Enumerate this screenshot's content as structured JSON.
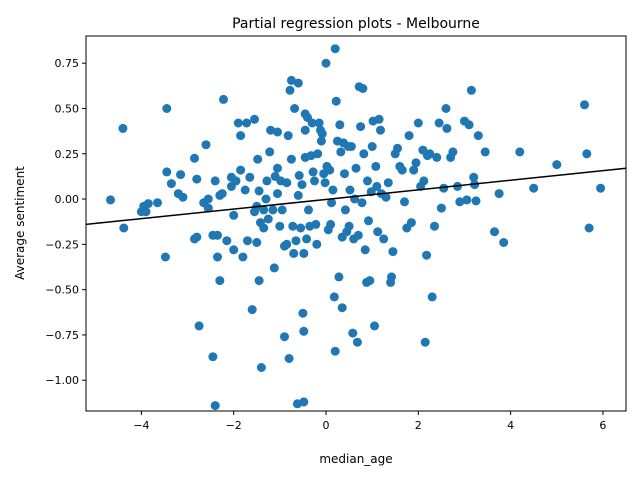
{
  "chart_data": {
    "type": "scatter",
    "title": "Partial regression plots - Melbourne",
    "xlabel": "median_age",
    "ylabel": "Average sentiment",
    "xlim": [
      -5.2,
      6.5
    ],
    "ylim": [
      -1.17,
      0.9
    ],
    "xticks": [
      -4,
      -2,
      0,
      2,
      4,
      6
    ],
    "xtick_labels": [
      "−4",
      "−2",
      "0",
      "2",
      "4",
      "6"
    ],
    "yticks": [
      -1.0,
      -0.75,
      -0.5,
      -0.25,
      0.0,
      0.25,
      0.5,
      0.75
    ],
    "ytick_labels": [
      "−1.00",
      "−0.75",
      "−0.50",
      "−0.25",
      "0.00",
      "0.25",
      "0.50",
      "0.75"
    ],
    "grid": false,
    "point_color": "#1f77b4",
    "line_color": "#000000",
    "fit_line": {
      "x": [
        -5.2,
        6.5
      ],
      "y": [
        -0.14,
        0.17
      ]
    },
    "points": [
      [
        -4.67,
        -0.005
      ],
      [
        -4.4,
        0.39
      ],
      [
        -4.38,
        -0.16
      ],
      [
        -4.0,
        -0.07
      ],
      [
        -3.9,
        -0.07
      ],
      [
        -3.95,
        -0.04
      ],
      [
        -3.85,
        -0.025
      ],
      [
        -3.65,
        -0.02
      ],
      [
        -3.45,
        0.5
      ],
      [
        -3.45,
        0.15
      ],
      [
        -3.48,
        -0.32
      ],
      [
        -3.35,
        0.085
      ],
      [
        -3.2,
        0.03
      ],
      [
        -3.15,
        0.135
      ],
      [
        -3.1,
        0.01
      ],
      [
        -2.85,
        0.225
      ],
      [
        -2.85,
        -0.22
      ],
      [
        -2.8,
        0.11
      ],
      [
        -2.8,
        -0.21
      ],
      [
        -2.75,
        -0.7
      ],
      [
        -2.65,
        -0.02
      ],
      [
        -2.6,
        0.3
      ],
      [
        -2.55,
        -0.05
      ],
      [
        -2.55,
        0.0
      ],
      [
        -2.45,
        -0.2
      ],
      [
        -2.45,
        -0.87
      ],
      [
        -2.4,
        -1.14
      ],
      [
        -2.4,
        0.1
      ],
      [
        -2.35,
        -0.32
      ],
      [
        -2.35,
        -0.2
      ],
      [
        -2.3,
        -0.45
      ],
      [
        -2.3,
        0.02
      ],
      [
        -2.25,
        0.03
      ],
      [
        -2.22,
        0.55
      ],
      [
        -2.15,
        -0.23
      ],
      [
        -2.05,
        0.12
      ],
      [
        -2.05,
        0.07
      ],
      [
        -2.0,
        -0.28
      ],
      [
        -2.0,
        -0.09
      ],
      [
        -1.95,
        0.1
      ],
      [
        -1.9,
        0.42
      ],
      [
        -1.85,
        0.35
      ],
      [
        -1.85,
        0.16
      ],
      [
        -1.8,
        -0.32
      ],
      [
        -1.75,
        0.05
      ],
      [
        -1.72,
        0.42
      ],
      [
        -1.7,
        -0.23
      ],
      [
        -1.65,
        0.12
      ],
      [
        -1.6,
        -0.61
      ],
      [
        -1.55,
        0.44
      ],
      [
        -1.55,
        -0.07
      ],
      [
        -1.5,
        -0.04
      ],
      [
        -1.5,
        -0.24
      ],
      [
        -1.48,
        0.22
      ],
      [
        -1.45,
        0.045
      ],
      [
        -1.45,
        -0.45
      ],
      [
        -1.42,
        -0.13
      ],
      [
        -1.4,
        -0.93
      ],
      [
        -1.35,
        -0.06
      ],
      [
        -1.35,
        -0.16
      ],
      [
        -1.3,
        0.0
      ],
      [
        -1.28,
        0.1
      ],
      [
        -1.25,
        -0.11
      ],
      [
        -1.22,
        0.26
      ],
      [
        -1.2,
        0.38
      ],
      [
        -1.15,
        -0.06
      ],
      [
        -1.12,
        -0.38
      ],
      [
        -1.1,
        0.125
      ],
      [
        -1.05,
        0.37
      ],
      [
        -1.05,
        0.03
      ],
      [
        -1.05,
        0.17
      ],
      [
        -1.0,
        -0.15
      ],
      [
        -0.98,
        0.1
      ],
      [
        -0.95,
        -0.06
      ],
      [
        -0.9,
        -0.26
      ],
      [
        -0.9,
        -0.76
      ],
      [
        -0.85,
        0.09
      ],
      [
        -0.85,
        -0.25
      ],
      [
        -0.82,
        0.35
      ],
      [
        -0.8,
        -0.88
      ],
      [
        -0.78,
        0.6
      ],
      [
        -0.75,
        0.655
      ],
      [
        -0.75,
        0.22
      ],
      [
        -0.72,
        -0.15
      ],
      [
        -0.7,
        -0.3
      ],
      [
        -0.68,
        0.5
      ],
      [
        -0.65,
        -0.23
      ],
      [
        -0.62,
        -1.13
      ],
      [
        -0.6,
        0.64
      ],
      [
        -0.6,
        0.02
      ],
      [
        -0.58,
        0.13
      ],
      [
        -0.55,
        -0.16
      ],
      [
        -0.52,
        0.08
      ],
      [
        -0.5,
        -0.63
      ],
      [
        -0.48,
        -0.3
      ],
      [
        -0.48,
        -0.73
      ],
      [
        -0.48,
        -1.12
      ],
      [
        -0.45,
        0.47
      ],
      [
        -0.45,
        0.38
      ],
      [
        -0.45,
        0.23
      ],
      [
        -0.42,
        -0.22
      ],
      [
        -0.4,
        0.45
      ],
      [
        -0.38,
        -0.06
      ],
      [
        -0.35,
        -0.15
      ],
      [
        -0.32,
        0.24
      ],
      [
        -0.3,
        0.42
      ],
      [
        -0.28,
        0.15
      ],
      [
        -0.25,
        0.1
      ],
      [
        -0.22,
        -0.14
      ],
      [
        -0.2,
        -0.25
      ],
      [
        -0.18,
        0.25
      ],
      [
        -0.15,
        0.42
      ],
      [
        -0.12,
        0.38
      ],
      [
        -0.1,
        0.32
      ],
      [
        -0.08,
        0.36
      ],
      [
        -0.05,
        0.14
      ],
      [
        -0.02,
        0.09
      ],
      [
        0.0,
        0.75
      ],
      [
        0.02,
        0.18
      ],
      [
        0.05,
        -0.17
      ],
      [
        0.08,
        0.16
      ],
      [
        0.1,
        -0.14
      ],
      [
        0.12,
        -0.02
      ],
      [
        0.15,
        0.05
      ],
      [
        0.18,
        -0.54
      ],
      [
        0.2,
        0.83
      ],
      [
        0.2,
        -0.84
      ],
      [
        0.22,
        0.54
      ],
      [
        0.25,
        0.32
      ],
      [
        0.28,
        -0.43
      ],
      [
        0.3,
        0.41
      ],
      [
        0.32,
        0.26
      ],
      [
        0.35,
        -0.6
      ],
      [
        0.35,
        -0.21
      ],
      [
        0.38,
        0.31
      ],
      [
        0.4,
        0.14
      ],
      [
        0.42,
        -0.06
      ],
      [
        0.45,
        -0.18
      ],
      [
        0.48,
        0.29
      ],
      [
        0.5,
        -0.15
      ],
      [
        0.52,
        0.05
      ],
      [
        0.55,
        0.29
      ],
      [
        0.58,
        -0.74
      ],
      [
        0.6,
        -0.22
      ],
      [
        0.62,
        0.0
      ],
      [
        0.65,
        0.17
      ],
      [
        0.68,
        -0.79
      ],
      [
        0.7,
        -0.2
      ],
      [
        0.72,
        0.62
      ],
      [
        0.75,
        0.4
      ],
      [
        0.78,
        -0.02
      ],
      [
        0.8,
        0.61
      ],
      [
        0.82,
        0.25
      ],
      [
        0.85,
        -0.28
      ],
      [
        0.88,
        -0.46
      ],
      [
        0.9,
        0.1
      ],
      [
        0.92,
        -0.12
      ],
      [
        0.95,
        -0.45
      ],
      [
        0.98,
        0.04
      ],
      [
        1.0,
        0.29
      ],
      [
        1.02,
        0.43
      ],
      [
        1.05,
        -0.7
      ],
      [
        1.08,
        0.18
      ],
      [
        1.1,
        0.07
      ],
      [
        1.12,
        -0.18
      ],
      [
        1.15,
        0.44
      ],
      [
        1.18,
        0.38
      ],
      [
        1.2,
        0.03
      ],
      [
        1.25,
        -0.22
      ],
      [
        1.3,
        0.01
      ],
      [
        1.35,
        0.09
      ],
      [
        1.4,
        -0.46
      ],
      [
        1.42,
        -0.43
      ],
      [
        1.45,
        -0.29
      ],
      [
        1.5,
        0.25
      ],
      [
        1.55,
        0.28
      ],
      [
        1.6,
        0.18
      ],
      [
        1.65,
        0.16
      ],
      [
        1.7,
        -0.015
      ],
      [
        1.75,
        -0.16
      ],
      [
        1.8,
        0.35
      ],
      [
        1.85,
        -0.13
      ],
      [
        1.9,
        0.16
      ],
      [
        1.95,
        0.2
      ],
      [
        2.0,
        0.42
      ],
      [
        2.05,
        0.07
      ],
      [
        2.1,
        0.27
      ],
      [
        2.12,
        0.1
      ],
      [
        2.15,
        -0.79
      ],
      [
        2.18,
        -0.31
      ],
      [
        2.2,
        0.24
      ],
      [
        2.25,
        0.25
      ],
      [
        2.3,
        -0.54
      ],
      [
        2.35,
        -0.15
      ],
      [
        2.4,
        0.23
      ],
      [
        2.45,
        0.42
      ],
      [
        2.5,
        -0.05
      ],
      [
        2.55,
        0.06
      ],
      [
        2.6,
        0.5
      ],
      [
        2.62,
        0.39
      ],
      [
        2.7,
        0.23
      ],
      [
        2.75,
        0.26
      ],
      [
        2.85,
        0.07
      ],
      [
        2.9,
        -0.015
      ],
      [
        3.0,
        0.43
      ],
      [
        3.05,
        -0.005
      ],
      [
        3.1,
        0.41
      ],
      [
        3.15,
        0.6
      ],
      [
        3.2,
        0.12
      ],
      [
        3.22,
        0.08
      ],
      [
        3.25,
        -0.01
      ],
      [
        3.3,
        0.35
      ],
      [
        3.45,
        0.26
      ],
      [
        3.65,
        -0.18
      ],
      [
        3.75,
        0.03
      ],
      [
        3.85,
        -0.24
      ],
      [
        4.2,
        0.26
      ],
      [
        4.5,
        0.06
      ],
      [
        5.0,
        0.19
      ],
      [
        5.6,
        0.52
      ],
      [
        5.65,
        0.25
      ],
      [
        5.7,
        -0.16
      ],
      [
        5.95,
        0.06
      ]
    ]
  }
}
